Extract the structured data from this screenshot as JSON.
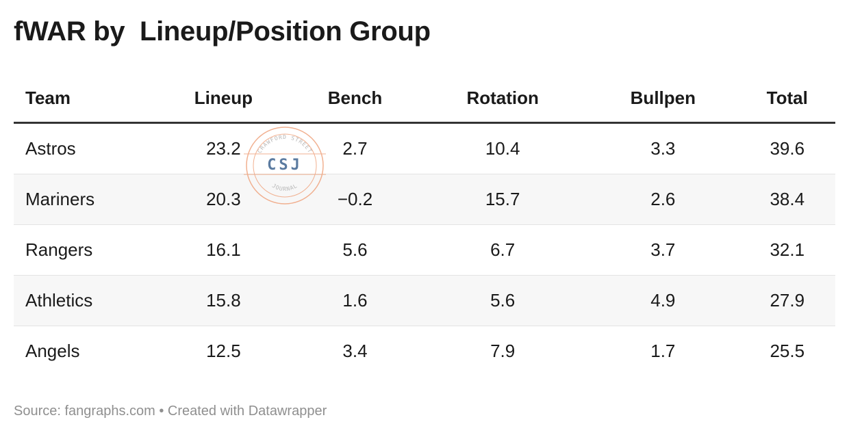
{
  "title": "fWAR by  Lineup/Position Group",
  "footer": "Source: fangraphs.com • Created with Datawrapper",
  "watermark": {
    "top_text": "CRAWFORD STREET",
    "logo": "CSJ",
    "bottom_text": "JOURNAL",
    "ring_color": "#f0a884",
    "logo_color": "#4a6d96"
  },
  "chart_data": {
    "type": "table",
    "columns": [
      "Team",
      "Lineup",
      "Bench",
      "Rotation",
      "Bullpen",
      "Total"
    ],
    "rows": [
      [
        "Astros",
        "23.2",
        "2.7",
        "10.4",
        "3.3",
        "39.6"
      ],
      [
        "Mariners",
        "20.3",
        "−0.2",
        "15.7",
        "2.6",
        "38.4"
      ],
      [
        "Rangers",
        "16.1",
        "5.6",
        "6.7",
        "3.7",
        "32.1"
      ],
      [
        "Athletics",
        "15.8",
        "1.6",
        "5.6",
        "4.9",
        "27.9"
      ],
      [
        "Angels",
        "12.5",
        "3.4",
        "7.9",
        "1.7",
        "25.5"
      ]
    ]
  }
}
